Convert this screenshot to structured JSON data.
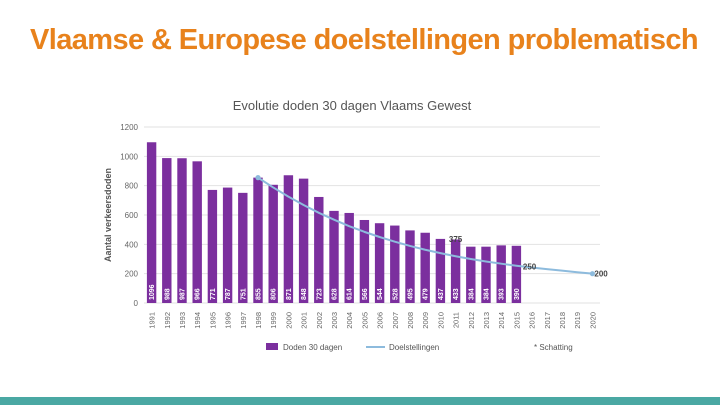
{
  "slide": {
    "title": "Vlaamse & Europese doelstellingen problematisch"
  },
  "colors": {
    "title": "#e8821c",
    "bars": "#7b2f9e",
    "target_line": "#8dbbdd",
    "bottom_bar": "#4aa8a3",
    "value_labels_bar": "#ffffff"
  },
  "chart_data": {
    "type": "bar",
    "title": "Evolutie doden 30 dagen Vlaams Gewest",
    "ylabel": "Aantal verkeersdoden",
    "xlabel": "",
    "ylim": [
      0,
      1200
    ],
    "yticks": [
      0,
      200,
      400,
      600,
      800,
      1000,
      1200
    ],
    "grid": true,
    "categories": [
      "1991",
      "1992",
      "1993",
      "1994",
      "1995",
      "1996",
      "1997",
      "1998",
      "1999",
      "2000",
      "2001",
      "2002",
      "2003",
      "2004",
      "2005",
      "2006",
      "2007",
      "2008",
      "2009",
      "2010",
      "2011",
      "2012",
      "2013",
      "2014",
      "2015",
      "2016",
      "2017",
      "2018",
      "2019",
      "2020"
    ],
    "series": [
      {
        "name": "Doden 30 dagen",
        "type": "bar",
        "values": [
          1096,
          988,
          987,
          966,
          771,
          787,
          751,
          855,
          806,
          871,
          848,
          723,
          628,
          614,
          566,
          544,
          528,
          495,
          479,
          437,
          433,
          384,
          384,
          393,
          390,
          null,
          null,
          null,
          null,
          null
        ],
        "labels": [
          "1096",
          "988",
          "987",
          "966",
          "771",
          "787",
          "751",
          "855",
          "806",
          "871",
          "848",
          "723",
          "628",
          "614",
          "566",
          "544",
          "528",
          "495",
          "479",
          "437",
          "433",
          "384",
          "384",
          "393",
          "390",
          "",
          "",
          "",
          "",
          ""
        ]
      },
      {
        "name": "Doelstellingen",
        "type": "line",
        "x": [
          "1998",
          "1999",
          "2000",
          "2001",
          "2002",
          "2003",
          "2004",
          "2005",
          "2006",
          "2007",
          "2008",
          "2009",
          "2010",
          "2011",
          "2012",
          "2013",
          "2014",
          "2015",
          "2016",
          "2017",
          "2018",
          "2019",
          "2020"
        ],
        "values": [
          855,
          788,
          725,
          668,
          615,
          568,
          524,
          485,
          450,
          418,
          389,
          363,
          340,
          319,
          300,
          283,
          268,
          254,
          242,
          231,
          221,
          210,
          200
        ]
      }
    ],
    "annotations": [
      {
        "x": "2011",
        "y": 375,
        "text": "375"
      },
      {
        "x": "2016",
        "y": 250,
        "text": "250"
      },
      {
        "x": "2020",
        "y": 200,
        "text": "200"
      }
    ],
    "legend": {
      "position": "bottom",
      "items": [
        "Doden 30 dagen",
        "Doelstellingen"
      ],
      "note": "* Schatting"
    }
  }
}
